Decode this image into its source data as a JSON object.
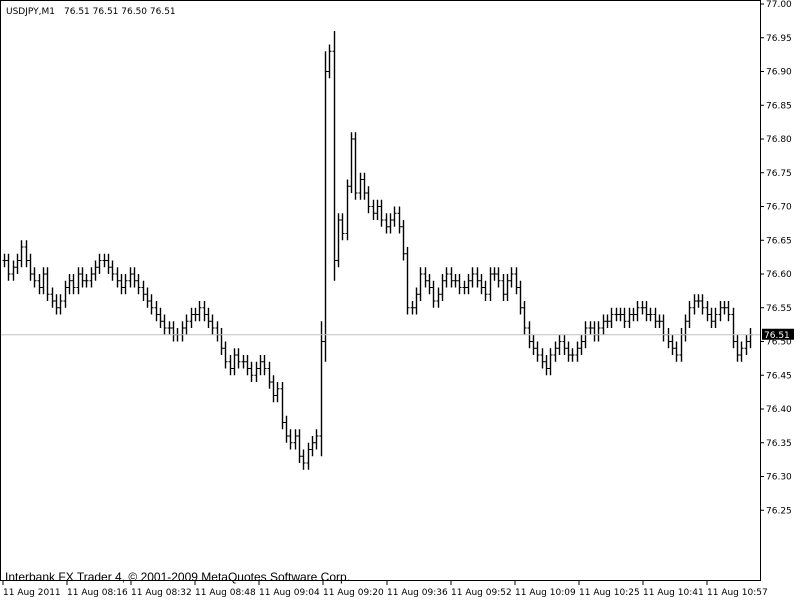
{
  "header": {
    "symbol": "USDJPY,M1",
    "ohlc": "76.51 76.51 76.50 76.51"
  },
  "footer": {
    "copyright": "Interbank FX Trader 4, © 2001-2009 MetaQuotes Software Corp."
  },
  "price_tag": "76.51",
  "chart_data": {
    "type": "bar",
    "subtype": "ohlc",
    "symbol": "USDJPY",
    "timeframe": "M1",
    "ylim": [
      76.2,
      77.0
    ],
    "y_ticks": [
      "77.00",
      "76.95",
      "76.90",
      "76.85",
      "76.80",
      "76.75",
      "76.70",
      "76.65",
      "76.60",
      "76.55",
      "76.50",
      "76.45",
      "76.40",
      "76.35",
      "76.30",
      "76.25"
    ],
    "x_ticks": [
      "11 Aug 2011",
      "11 Aug 08:16",
      "11 Aug 08:32",
      "11 Aug 08:48",
      "11 Aug 09:04",
      "11 Aug 09:20",
      "11 Aug 09:36",
      "11 Aug 09:52",
      "11 Aug 10:09",
      "11 Aug 10:25",
      "11 Aug 10:41",
      "11 Aug 10:57"
    ],
    "bid_line": 76.51,
    "grid": false,
    "close": [
      76.62,
      76.6,
      76.61,
      76.62,
      76.64,
      76.62,
      76.6,
      76.59,
      76.58,
      76.6,
      76.57,
      76.56,
      76.55,
      76.56,
      76.58,
      76.59,
      76.58,
      76.6,
      76.59,
      76.59,
      76.6,
      76.61,
      76.62,
      76.62,
      76.61,
      76.6,
      76.59,
      76.58,
      76.59,
      76.6,
      76.59,
      76.58,
      76.57,
      76.56,
      76.55,
      76.54,
      76.53,
      76.52,
      76.52,
      76.51,
      76.51,
      76.52,
      76.53,
      76.54,
      76.54,
      76.55,
      76.54,
      76.53,
      76.52,
      76.51,
      76.49,
      76.47,
      76.46,
      76.48,
      76.47,
      76.47,
      76.46,
      76.45,
      76.46,
      76.47,
      76.46,
      76.44,
      76.42,
      76.43,
      76.38,
      76.36,
      76.35,
      76.36,
      76.33,
      76.32,
      76.34,
      76.35,
      76.36,
      76.5,
      76.9,
      76.93,
      76.62,
      76.68,
      76.66,
      76.73,
      76.8,
      76.72,
      76.74,
      76.72,
      76.7,
      76.69,
      76.7,
      76.68,
      76.67,
      76.68,
      76.69,
      76.67,
      76.63,
      76.55,
      76.55,
      76.57,
      76.6,
      76.59,
      76.58,
      76.56,
      76.57,
      76.59,
      76.6,
      76.59,
      76.59,
      76.58,
      76.58,
      76.59,
      76.6,
      76.59,
      76.58,
      76.57,
      76.6,
      76.6,
      76.59,
      76.57,
      76.59,
      76.6,
      76.58,
      76.55,
      76.52,
      76.5,
      76.49,
      76.48,
      76.47,
      76.46,
      76.48,
      76.49,
      76.5,
      76.49,
      76.48,
      76.48,
      76.49,
      76.5,
      76.52,
      76.52,
      76.51,
      76.52,
      76.53,
      76.53,
      76.54,
      76.54,
      76.54,
      76.53,
      76.54,
      76.54,
      76.55,
      76.55,
      76.54,
      76.54,
      76.53,
      76.53,
      76.51,
      76.5,
      76.49,
      76.48,
      76.51,
      76.53,
      76.55,
      76.56,
      76.56,
      76.55,
      76.54,
      76.53,
      76.54,
      76.55,
      76.55,
      76.54,
      76.5,
      76.48,
      76.49,
      76.5,
      76.51
    ]
  }
}
